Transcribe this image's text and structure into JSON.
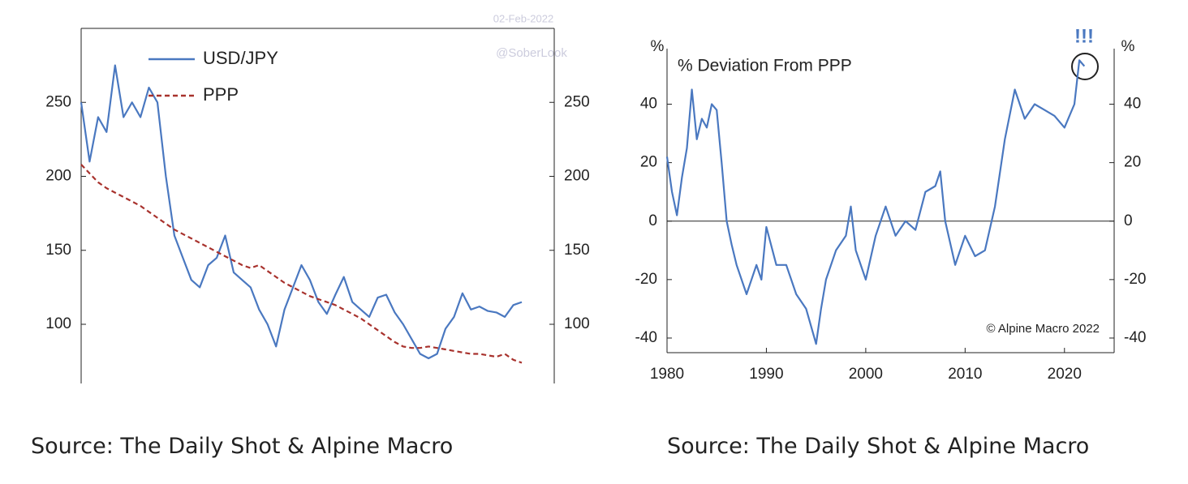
{
  "chart_data": [
    {
      "type": "line",
      "annotations": [
        "02-Feb-2022",
        "@SoberLook"
      ],
      "ylim": [
        60,
        300
      ],
      "yticks": [
        100,
        150,
        200,
        250
      ],
      "series": [
        {
          "name": "USD/JPY",
          "color": "#4a78c0",
          "style": "solid",
          "values": [
            250,
            210,
            240,
            230,
            275,
            240,
            250,
            240,
            260,
            250,
            200,
            160,
            145,
            130,
            125,
            140,
            145,
            160,
            135,
            130,
            125,
            110,
            100,
            85,
            110,
            125,
            140,
            130,
            115,
            107,
            120,
            132,
            115,
            110,
            105,
            118,
            120,
            108,
            100,
            90,
            80,
            77,
            80,
            97,
            105,
            121,
            110,
            112,
            109,
            108,
            105,
            113,
            115
          ]
        },
        {
          "name": "PPP",
          "color": "#a8322d",
          "style": "dashed",
          "values": [
            208,
            202,
            196,
            192,
            189,
            186,
            183,
            180,
            176,
            172,
            168,
            164,
            161,
            158,
            155,
            152,
            149,
            146,
            143,
            140,
            138,
            140,
            136,
            132,
            128,
            125,
            122,
            119,
            117,
            115,
            113,
            110,
            107,
            104,
            100,
            96,
            92,
            88,
            85,
            84,
            84,
            85,
            84,
            83,
            82,
            81,
            80,
            80,
            79,
            78,
            80,
            76,
            74
          ]
        }
      ]
    },
    {
      "type": "line",
      "title": "% Deviation From PPP",
      "y_label": "%",
      "y2_label": "%",
      "annotations": [
        "!!!",
        "© Alpine Macro 2022"
      ],
      "xlim": [
        1980,
        2025
      ],
      "xticks": [
        1980,
        1990,
        2000,
        2010,
        2020
      ],
      "ylim": [
        -45,
        59
      ],
      "yticks": [
        -40,
        -20,
        0,
        20,
        40
      ],
      "x": [
        1980,
        1980.5,
        1981,
        1981.5,
        1982,
        1982.5,
        1983,
        1983.5,
        1984,
        1984.5,
        1985,
        1985.5,
        1986,
        1986.5,
        1987,
        1988,
        1989,
        1989.5,
        1990,
        1991,
        1992,
        1993,
        1994,
        1995,
        1995.5,
        1996,
        1997,
        1998,
        1998.5,
        1999,
        2000,
        2001,
        2002,
        2003,
        2004,
        2005,
        2006,
        2007,
        2007.5,
        2008,
        2009,
        2010,
        2011,
        2012,
        2013,
        2014,
        2015,
        2016,
        2017,
        2018,
        2019,
        2020,
        2021,
        2021.5,
        2022
      ],
      "series": [
        {
          "name": "% Deviation From PPP",
          "color": "#4a78c0",
          "values": [
            22,
            10,
            2,
            15,
            25,
            45,
            28,
            35,
            32,
            40,
            38,
            20,
            0,
            -8,
            -15,
            -25,
            -15,
            -20,
            -2,
            -15,
            -15,
            -25,
            -30,
            -42,
            -30,
            -20,
            -10,
            -5,
            5,
            -10,
            -20,
            -5,
            5,
            -5,
            0,
            -3,
            10,
            12,
            17,
            0,
            -15,
            -5,
            -12,
            -10,
            5,
            28,
            45,
            35,
            40,
            38,
            36,
            32,
            40,
            55,
            53
          ]
        }
      ]
    }
  ],
  "captions": [
    "Source: The Daily Shot & Alpine Macro",
    "Source: The Daily Shot & Alpine Macro"
  ]
}
